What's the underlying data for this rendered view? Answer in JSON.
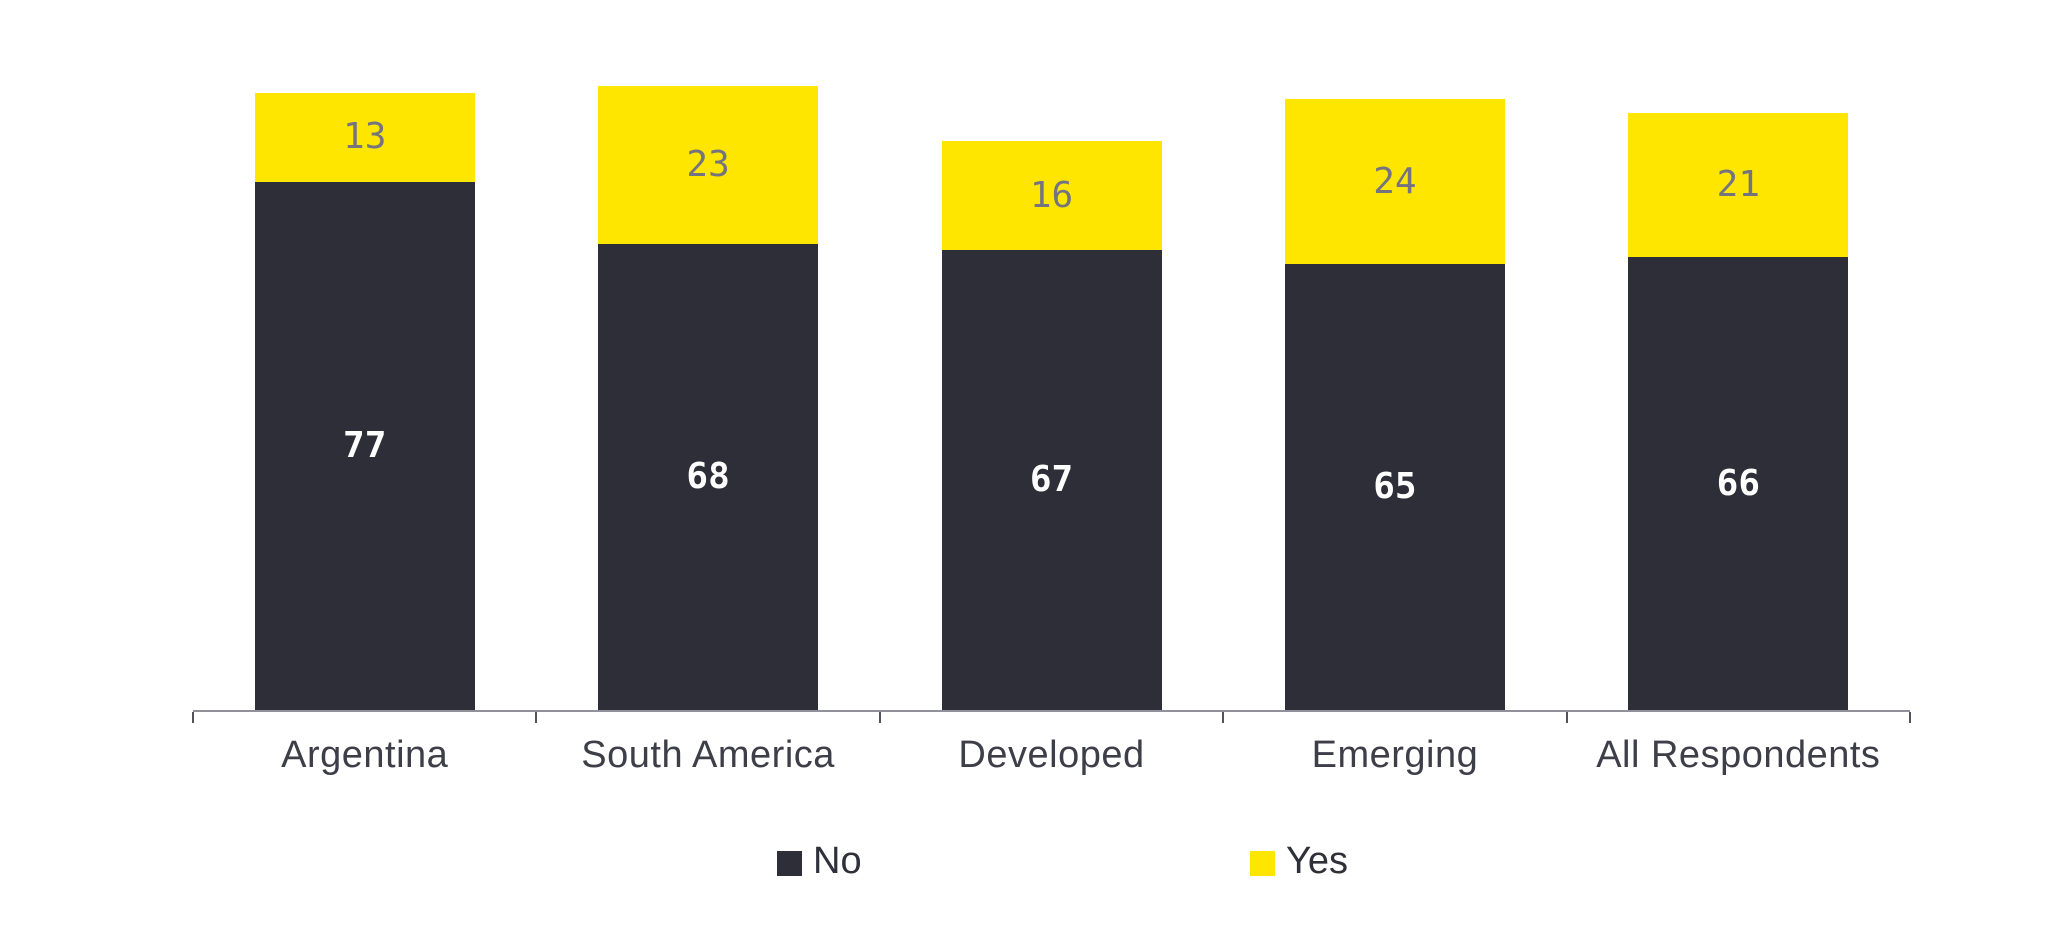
{
  "chart_data": {
    "type": "bar",
    "stacked": true,
    "orientation": "vertical",
    "categories": [
      "Argentina",
      "South America",
      "Developed",
      "Emerging",
      "All Respondents"
    ],
    "series": [
      {
        "name": "No",
        "color": "#2E2E38",
        "label_color": "#FFFFFF",
        "values": [
          77,
          68,
          67,
          65,
          66
        ]
      },
      {
        "name": "Yes",
        "color": "#FFE600",
        "label_color": "#747480",
        "values": [
          13,
          23,
          16,
          24,
          21
        ]
      }
    ],
    "title": "",
    "xlabel": "",
    "ylabel": "",
    "y_axis_visible": false,
    "gridlines": false,
    "value_labels": "inside-center",
    "legend_position": "bottom"
  },
  "colors": {
    "background": "#FFFFFF",
    "bar_no": "#2E2E38",
    "bar_yes": "#FFE600",
    "value_label_on_dark": "#FFFFFF",
    "value_label_on_yellow": "#747480",
    "axis_line": "#90909A",
    "axis_tick": "#53535E",
    "category_label": "#3E3E49",
    "legend_text": "#30303B"
  }
}
